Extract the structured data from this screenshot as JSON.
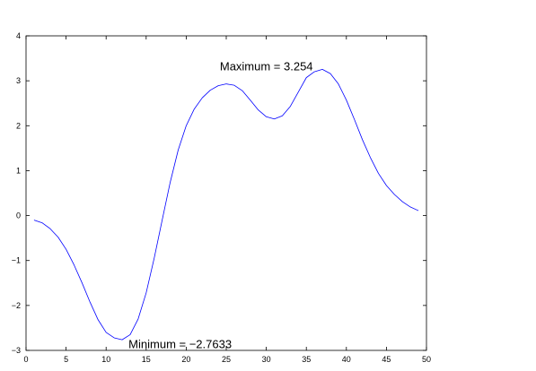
{
  "chart_data": {
    "type": "line",
    "title": "",
    "xlabel": "",
    "ylabel": "",
    "xlim": [
      0,
      50
    ],
    "ylim": [
      -3,
      4
    ],
    "xticks": [
      0,
      5,
      10,
      15,
      20,
      25,
      30,
      35,
      40,
      45,
      50
    ],
    "yticks": [
      -3,
      -2,
      -1,
      0,
      1,
      2,
      3,
      4
    ],
    "xtick_labels": [
      "0",
      "5",
      "10",
      "15",
      "20",
      "25",
      "30",
      "35",
      "40",
      "45",
      "50"
    ],
    "ytick_labels": [
      "−3",
      "−2",
      "−1",
      "0",
      "1",
      "2",
      "3",
      "4"
    ],
    "grid": false,
    "series": [
      {
        "color": "#0000ff",
        "x": [
          1,
          2,
          3,
          4,
          5,
          6,
          7,
          8,
          9,
          10,
          11,
          12,
          13,
          14,
          15,
          16,
          17,
          18,
          19,
          20,
          21,
          22,
          23,
          24,
          25,
          26,
          27,
          28,
          29,
          30,
          31,
          32,
          33,
          34,
          35,
          36,
          37,
          38,
          39,
          40,
          41,
          42,
          43,
          44,
          45,
          46,
          47,
          48,
          49
        ],
        "y": [
          -0.1,
          -0.16,
          -0.29,
          -0.48,
          -0.75,
          -1.1,
          -1.5,
          -1.93,
          -2.32,
          -2.6,
          -2.72,
          -2.7633,
          -2.65,
          -2.3,
          -1.72,
          -0.95,
          -0.1,
          0.74,
          1.46,
          2.0,
          2.37,
          2.62,
          2.79,
          2.89,
          2.93,
          2.9,
          2.78,
          2.57,
          2.35,
          2.2,
          2.15,
          2.22,
          2.43,
          2.75,
          3.07,
          3.2,
          3.254,
          3.16,
          2.93,
          2.57,
          2.14,
          1.69,
          1.29,
          0.94,
          0.67,
          0.47,
          0.31,
          0.19,
          0.11
        ]
      }
    ],
    "annotations": [
      {
        "text": "Maximum =  3.254",
        "x": 24.2,
        "y": 3.33
      },
      {
        "text": "Minimum = −2.7633",
        "x": 12.8,
        "y": -2.85
      }
    ]
  }
}
